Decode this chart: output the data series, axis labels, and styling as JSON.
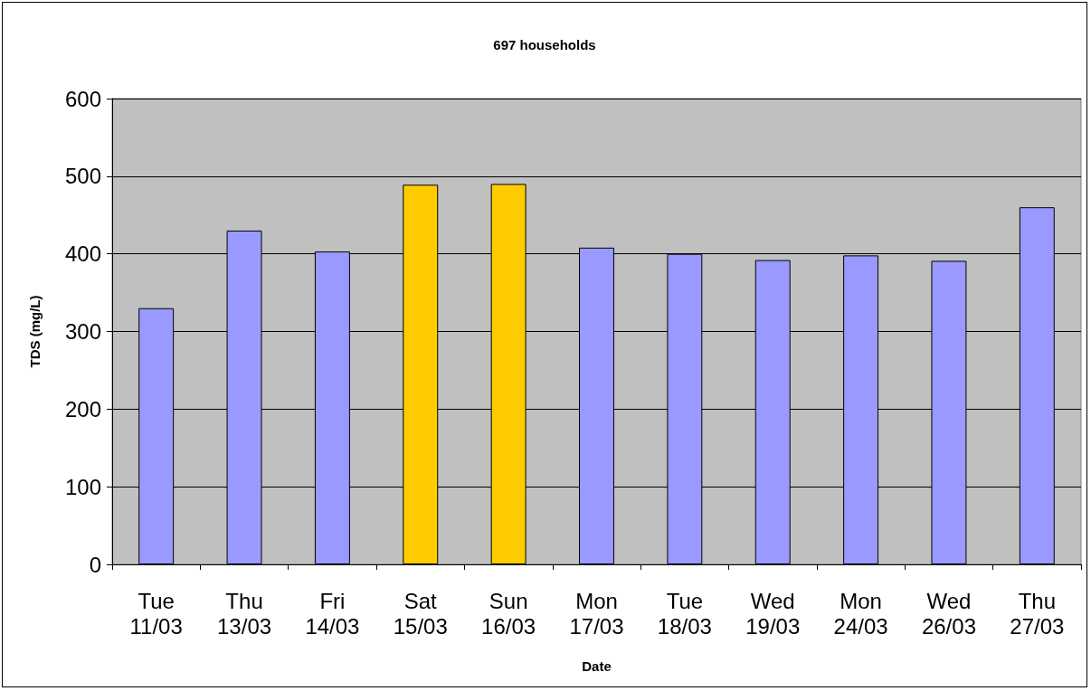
{
  "chart_data": {
    "type": "bar",
    "title": "697 households",
    "xlabel": "Date",
    "ylabel": "TDS (mg/L)",
    "categories": [
      "Tue\n11/03",
      "Thu\n13/03",
      "Fri\n14/03",
      "Sat\n15/03",
      "Sun\n16/03",
      "Mon\n17/03",
      "Tue\n18/03",
      "Wed\n19/03",
      "Mon\n24/03",
      "Wed\n26/03",
      "Thu\n27/03"
    ],
    "values": [
      330,
      430,
      403,
      489,
      490,
      408,
      400,
      392,
      398,
      391,
      460
    ],
    "colors": [
      "#9999ff",
      "#9999ff",
      "#9999ff",
      "#ffcc00",
      "#ffcc00",
      "#9999ff",
      "#9999ff",
      "#9999ff",
      "#9999ff",
      "#9999ff",
      "#9999ff"
    ],
    "ylim": [
      0,
      600
    ],
    "yticks": [
      0,
      100,
      200,
      300,
      400,
      500,
      600
    ],
    "grid": "y"
  }
}
